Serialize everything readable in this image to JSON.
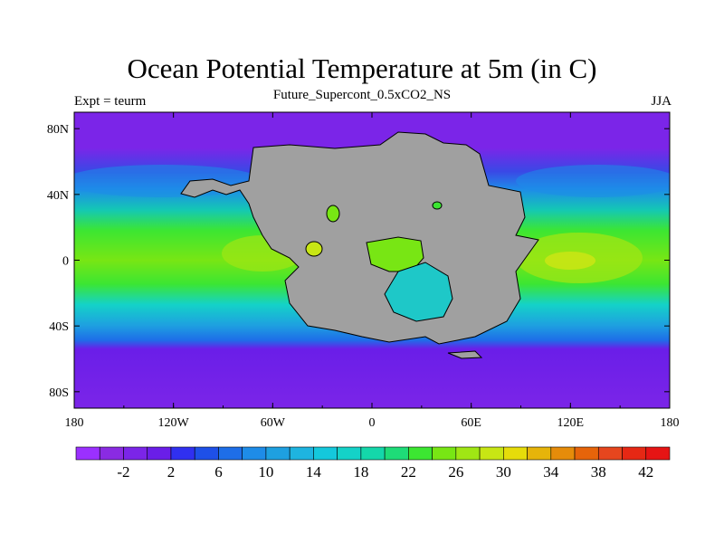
{
  "title": "Ocean Potential Temperature at 5m (in C)",
  "subtitle": "Future_Supercont_0.5xCO2_NS",
  "left_label": "Expt = teurm",
  "right_label": "JJA",
  "map": {
    "lon_range": [
      -180,
      180
    ],
    "lat_range": [
      -90,
      90
    ],
    "land_color": "#a0a0a0",
    "x_ticks": [
      {
        "lon": -180,
        "label": "180"
      },
      {
        "lon": -120,
        "label": "120W"
      },
      {
        "lon": -60,
        "label": "60W"
      },
      {
        "lon": 0,
        "label": "0"
      },
      {
        "lon": 60,
        "label": "60E"
      },
      {
        "lon": 120,
        "label": "120E"
      },
      {
        "lon": 180,
        "label": "180"
      }
    ],
    "y_ticks": [
      {
        "lat": 80,
        "label": "80N"
      },
      {
        "lat": 40,
        "label": "40N"
      },
      {
        "lat": 0,
        "label": "0"
      },
      {
        "lat": -40,
        "label": "40S"
      },
      {
        "lat": -80,
        "label": "80S"
      }
    ]
  },
  "colorbar": {
    "levels": [
      -6,
      -4,
      -2,
      0,
      2,
      4,
      6,
      8,
      10,
      12,
      14,
      16,
      18,
      20,
      22,
      24,
      26,
      28,
      30,
      32,
      34,
      36,
      38,
      40,
      42,
      44
    ],
    "colors": [
      "#9b30ff",
      "#8a2be2",
      "#7b25e8",
      "#6a1ee8",
      "#3030f0",
      "#1e50e8",
      "#1e6ee8",
      "#1e8ce8",
      "#1ea0e0",
      "#1eb4e0",
      "#14c8dc",
      "#14d2c8",
      "#14d7aa",
      "#1edc78",
      "#3ce632",
      "#78e614",
      "#a0e614",
      "#c8e614",
      "#e6dc0a",
      "#e6b40a",
      "#e68c0a",
      "#e6640a",
      "#e6461e",
      "#e62814",
      "#e61414"
    ],
    "labels": [
      {
        "value": -2,
        "label": "-2"
      },
      {
        "value": 2,
        "label": "2"
      },
      {
        "value": 6,
        "label": "6"
      },
      {
        "value": 10,
        "label": "10"
      },
      {
        "value": 14,
        "label": "14"
      },
      {
        "value": 18,
        "label": "18"
      },
      {
        "value": 22,
        "label": "22"
      },
      {
        "value": 26,
        "label": "26"
      },
      {
        "value": 30,
        "label": "30"
      },
      {
        "value": 34,
        "label": "34"
      },
      {
        "value": 38,
        "label": "38"
      },
      {
        "value": 42,
        "label": "42"
      }
    ]
  }
}
